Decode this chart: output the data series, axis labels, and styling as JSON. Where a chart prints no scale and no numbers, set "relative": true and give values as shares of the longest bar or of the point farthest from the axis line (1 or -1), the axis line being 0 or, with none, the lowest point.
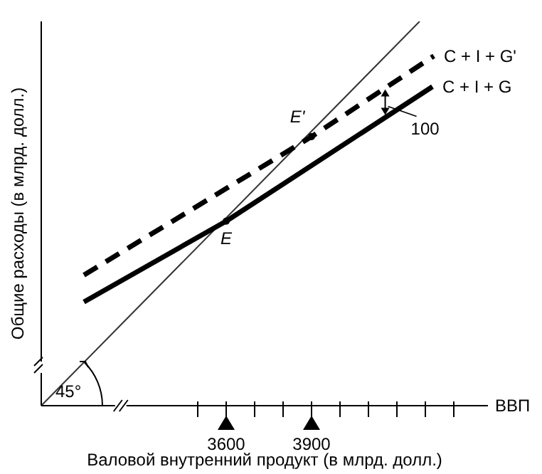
{
  "chart_data": {
    "type": "line",
    "relative": true,
    "xlabel": "Валовой внутренний продукт (в млрд. долл.)",
    "ylabel": "Общие расходы (в млрд. долл.)",
    "xlim": [
      2950,
      4520
    ],
    "xticks": [
      {
        "value": 3500,
        "label": null
      },
      3600,
      {
        "value": 3700,
        "label": null
      },
      {
        "value": 3800,
        "label": null
      },
      3900,
      {
        "value": 4000,
        "label": null
      },
      {
        "value": 4100,
        "label": null
      },
      {
        "value": 4200,
        "label": null
      },
      {
        "value": 4300,
        "label": null
      },
      {
        "value": 4400,
        "label": null
      }
    ],
    "series": [
      {
        "color": "#333333",
        "line_style": "solid",
        "x": [
          2950,
          4280
        ],
        "values": [
          0,
          1
        ]
      },
      {
        "name": "C + I + G'",
        "color": "#000000",
        "line_style": "dashed",
        "x": [
          3100,
          3900,
          4330
        ],
        "values": [
          0.34,
          0.7,
          0.91
        ]
      },
      {
        "name": "C + I + G",
        "color": "#000000",
        "line_style": "solid",
        "x": [
          3100,
          3600,
          4325
        ],
        "values": [
          0.27,
          0.48,
          0.83
        ]
      }
    ],
    "annotations": [
      {
        "text": "E",
        "x": 3600,
        "y": 0.48
      },
      {
        "text": "E'",
        "x": 3900,
        "y": 0.7
      },
      "100",
      "45°",
      "ВВП"
    ],
    "grid": false,
    "legend": false,
    "marker": "none"
  }
}
